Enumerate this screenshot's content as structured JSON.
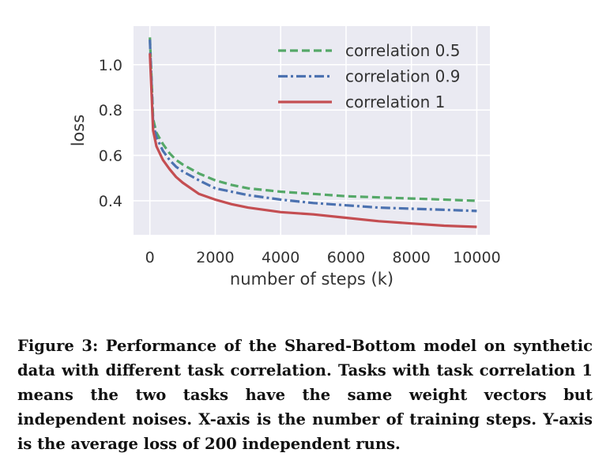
{
  "chart_data": {
    "type": "line",
    "xlabel": "number of steps (k)",
    "ylabel": "loss",
    "xlim": [
      -500,
      10400
    ],
    "ylim": [
      0.25,
      1.17
    ],
    "xticks": [
      0,
      2000,
      4000,
      6000,
      8000,
      10000
    ],
    "yticks": [
      0.4,
      0.6,
      0.8,
      1.0
    ],
    "xtick_labels": [
      "0",
      "2000",
      "4000",
      "6000",
      "8000",
      "10000"
    ],
    "ytick_labels": [
      "0.4",
      "0.6",
      "0.8",
      "1.0"
    ],
    "grid": true,
    "legend_position": "top-right",
    "colors": {
      "background": "#eaeaf2",
      "grid": "#ffffff"
    },
    "series": [
      {
        "name": "correlation 0.5",
        "color": "#55a868",
        "dash": "dashed",
        "x": [
          0,
          100,
          200,
          400,
          600,
          800,
          1000,
          1500,
          2000,
          2500,
          3000,
          4000,
          5000,
          6000,
          7000,
          8000,
          9000,
          10000
        ],
        "y": [
          1.12,
          0.76,
          0.7,
          0.65,
          0.61,
          0.58,
          0.56,
          0.52,
          0.49,
          0.47,
          0.455,
          0.44,
          0.43,
          0.42,
          0.415,
          0.41,
          0.405,
          0.4
        ]
      },
      {
        "name": "correlation 0.9",
        "color": "#4c72b0",
        "dash": "dashdot",
        "x": [
          0,
          100,
          200,
          400,
          600,
          800,
          1000,
          1500,
          2000,
          2500,
          3000,
          4000,
          5000,
          6000,
          7000,
          8000,
          9000,
          10000
        ],
        "y": [
          1.11,
          0.74,
          0.68,
          0.62,
          0.58,
          0.55,
          0.53,
          0.49,
          0.455,
          0.44,
          0.425,
          0.405,
          0.39,
          0.38,
          0.37,
          0.365,
          0.36,
          0.355
        ]
      },
      {
        "name": "correlation 1",
        "color": "#c44e52",
        "dash": "solid",
        "x": [
          0,
          100,
          200,
          400,
          600,
          800,
          1000,
          1500,
          2000,
          2500,
          3000,
          4000,
          5000,
          6000,
          7000,
          8000,
          9000,
          10000
        ],
        "y": [
          1.05,
          0.71,
          0.64,
          0.58,
          0.54,
          0.505,
          0.48,
          0.43,
          0.405,
          0.385,
          0.37,
          0.35,
          0.34,
          0.325,
          0.31,
          0.3,
          0.29,
          0.285
        ]
      }
    ]
  },
  "caption": "Figure 3: Performance of the Shared-Bottom model on synthetic data with different task correlation. Tasks with task correlation 1 means the two tasks have the same weight vectors but independent noises. X-axis is the number of training steps. Y-axis is the average loss of 200 independent runs."
}
